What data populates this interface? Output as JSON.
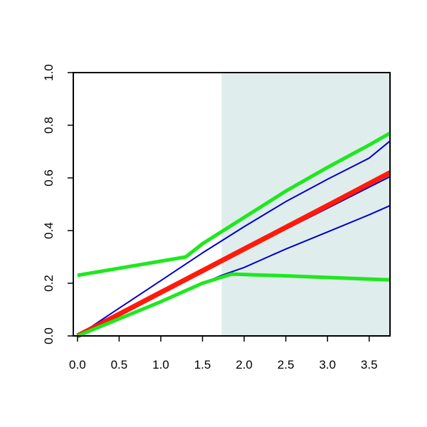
{
  "chart_data": {
    "type": "line",
    "title": "",
    "xlabel": "",
    "ylabel": "",
    "xlim": [
      -0.05,
      3.75
    ],
    "ylim": [
      0,
      1.0
    ],
    "x_ticks": [
      0.0,
      0.5,
      1.0,
      1.5,
      2.0,
      2.5,
      3.0,
      3.5
    ],
    "x_tick_labels": [
      "0.0",
      "0.5",
      "1.0",
      "1.5",
      "2.0",
      "2.5",
      "3.0",
      "3.5"
    ],
    "y_ticks": [
      0.0,
      0.2,
      0.4,
      0.6,
      0.8,
      1.0
    ],
    "y_tick_labels": [
      "0.0",
      "0.2",
      "0.4",
      "0.6",
      "0.8",
      "1.0"
    ],
    "grid": false,
    "shaded_region": {
      "x": [
        1.73,
        3.75
      ],
      "color": "#e0eded"
    },
    "series": [
      {
        "color": "#0000cc",
        "role": "blue-upper",
        "x": [
          0.0,
          0.5,
          1.0,
          1.5,
          2.0,
          2.5,
          3.0,
          3.5,
          3.75
        ],
        "y": [
          0.0,
          0.105,
          0.21,
          0.315,
          0.415,
          0.51,
          0.595,
          0.675,
          0.74
        ]
      },
      {
        "color": "#0000cc",
        "role": "blue-middle",
        "x": [
          0.0,
          0.5,
          1.0,
          1.5,
          2.0,
          2.5,
          3.0,
          3.5,
          3.75
        ],
        "y": [
          0.0,
          0.08,
          0.16,
          0.24,
          0.325,
          0.405,
          0.485,
          0.565,
          0.605
        ]
      },
      {
        "color": "#0000cc",
        "role": "blue-lower",
        "x": [
          0.0,
          0.5,
          1.0,
          1.5,
          1.73,
          2.0,
          2.5,
          3.0,
          3.5,
          3.75
        ],
        "y": [
          0.0,
          0.065,
          0.13,
          0.2,
          0.23,
          0.26,
          0.33,
          0.395,
          0.46,
          0.495
        ]
      },
      {
        "color": "#ff1a0a",
        "role": "red-center",
        "x": [
          0.0,
          1.0,
          2.0,
          3.0,
          3.75
        ],
        "y": [
          0.0,
          0.165,
          0.33,
          0.495,
          0.62
        ]
      },
      {
        "color": "#1ee81e",
        "role": "green-upper",
        "x": [
          0.0,
          1.3,
          1.5,
          2.0,
          2.5,
          3.0,
          3.5,
          3.75
        ],
        "y": [
          0.23,
          0.3,
          0.35,
          0.45,
          0.55,
          0.64,
          0.725,
          0.77
        ]
      },
      {
        "color": "#1ee81e",
        "role": "green-lower",
        "x": [
          0.0,
          1.0,
          1.5,
          1.85,
          2.5,
          3.0,
          3.5,
          3.75
        ],
        "y": [
          0.0,
          0.13,
          0.2,
          0.235,
          0.228,
          0.222,
          0.216,
          0.213
        ]
      }
    ]
  }
}
